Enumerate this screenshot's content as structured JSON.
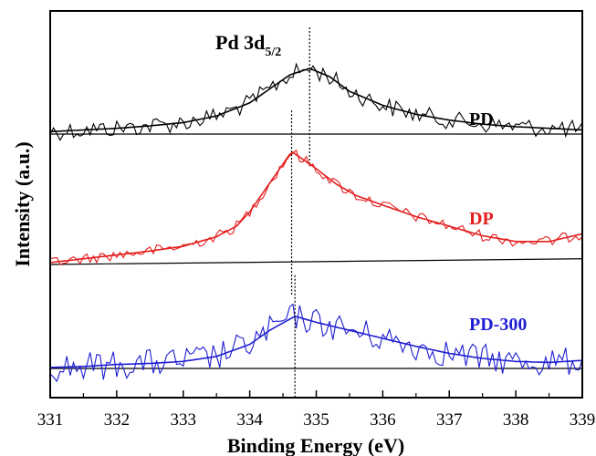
{
  "chart_data": {
    "type": "line",
    "xlabel": "Binding Energy (eV)",
    "ylabel": "Intensity (a.u.)",
    "xlim": [
      331,
      339
    ],
    "x_ticks": [
      "331",
      "332",
      "333",
      "334",
      "335",
      "336",
      "337",
      "338",
      "339"
    ],
    "annotation": {
      "text": "Pd 3d",
      "subscript": "5/2"
    },
    "series": [
      {
        "name": "PD",
        "color": "#000000",
        "peak": 334.9,
        "x": [
          331.0,
          331.5,
          332.0,
          332.5,
          333.0,
          333.5,
          334.0,
          334.3,
          334.6,
          334.9,
          335.2,
          335.5,
          336.0,
          336.5,
          337.0,
          337.5,
          338.0,
          338.5,
          339.0
        ],
        "fit": [
          0.03,
          0.05,
          0.07,
          0.1,
          0.14,
          0.22,
          0.38,
          0.55,
          0.72,
          0.8,
          0.7,
          0.52,
          0.35,
          0.24,
          0.17,
          0.12,
          0.09,
          0.07,
          0.05
        ],
        "baseline": [
          0,
          0
        ]
      },
      {
        "name": "DP",
        "color": "#e41e1e",
        "peak": 334.63,
        "x": [
          331.0,
          331.5,
          332.0,
          332.5,
          333.0,
          333.5,
          333.8,
          334.0,
          334.3,
          334.63,
          335.0,
          335.3,
          335.6,
          336.0,
          336.5,
          337.0,
          337.5,
          338.0,
          338.5,
          339.0
        ],
        "fit": [
          0.02,
          0.06,
          0.1,
          0.14,
          0.19,
          0.29,
          0.4,
          0.55,
          0.85,
          1.18,
          1.0,
          0.84,
          0.72,
          0.62,
          0.5,
          0.4,
          0.3,
          0.24,
          0.24,
          0.32
        ],
        "baseline": [
          0.0,
          0.06
        ]
      },
      {
        "name": "PD-300",
        "color": "#1e1ed2",
        "peak": 334.68,
        "x": [
          331.0,
          331.5,
          332.0,
          332.5,
          333.0,
          333.5,
          334.0,
          334.3,
          334.68,
          335.0,
          335.5,
          336.0,
          336.5,
          337.0,
          337.5,
          338.0,
          338.5,
          339.0
        ],
        "fit": [
          0.01,
          0.02,
          0.04,
          0.05,
          0.07,
          0.12,
          0.24,
          0.38,
          0.52,
          0.46,
          0.38,
          0.3,
          0.22,
          0.15,
          0.1,
          0.07,
          0.06,
          0.08
        ],
        "baseline": [
          0,
          0
        ]
      }
    ]
  }
}
